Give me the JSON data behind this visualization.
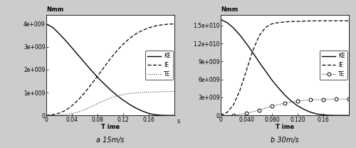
{
  "left": {
    "title": "Nmm",
    "xlabel": "T ime",
    "xlabel_s": "s",
    "xlim": [
      0,
      0.2
    ],
    "ylim": [
      0,
      4400000000.0
    ],
    "yticks": [
      0,
      1000000000.0,
      2000000000.0,
      3000000000.0,
      4000000000.0
    ],
    "ytick_labels": [
      "0",
      "1e+009",
      "2e+009",
      "3e+009",
      "4e+009"
    ],
    "xticks": [
      0,
      0.04,
      0.08,
      0.12,
      0.16
    ],
    "xtick_labels": [
      "0",
      "0.04",
      "0.08",
      "0.12",
      "0.16"
    ],
    "caption": "a 15m/s",
    "KE_x": [
      0.0,
      0.01,
      0.02,
      0.03,
      0.04,
      0.05,
      0.06,
      0.07,
      0.08,
      0.09,
      0.1,
      0.11,
      0.12,
      0.13,
      0.14,
      0.15,
      0.16,
      0.17,
      0.18,
      0.19,
      0.2
    ],
    "KE_y": [
      4000000000.0,
      3850000000.0,
      3580000000.0,
      3280000000.0,
      2960000000.0,
      2630000000.0,
      2300000000.0,
      1980000000.0,
      1670000000.0,
      1390000000.0,
      1120000000.0,
      880000000.0,
      670000000.0,
      480000000.0,
      320000000.0,
      190000000.0,
      90000000.0,
      30000000.0,
      8000000.0,
      1000000.0,
      200000.0
    ],
    "IE_x": [
      0.0,
      0.01,
      0.02,
      0.03,
      0.04,
      0.05,
      0.06,
      0.07,
      0.08,
      0.09,
      0.1,
      0.11,
      0.12,
      0.13,
      0.14,
      0.15,
      0.16,
      0.17,
      0.18,
      0.19,
      0.2
    ],
    "IE_y": [
      0.0,
      30000000.0,
      100000000.0,
      220000000.0,
      420000000.0,
      680000000.0,
      1000000000.0,
      1350000000.0,
      1720000000.0,
      2100000000.0,
      2480000000.0,
      2820000000.0,
      3120000000.0,
      3370000000.0,
      3570000000.0,
      3720000000.0,
      3830000000.0,
      3910000000.0,
      3960000000.0,
      3990000000.0,
      4000000000.0
    ],
    "TE_x": [
      0.0,
      0.01,
      0.02,
      0.03,
      0.04,
      0.05,
      0.06,
      0.07,
      0.08,
      0.09,
      0.1,
      0.11,
      0.12,
      0.13,
      0.14,
      0.15,
      0.16,
      0.17,
      0.18,
      0.19,
      0.2
    ],
    "TE_y": [
      0.0,
      5000000.0,
      15000000.0,
      40000000.0,
      80000000.0,
      150000000.0,
      250000000.0,
      380000000.0,
      520000000.0,
      650000000.0,
      760000000.0,
      850000000.0,
      910000000.0,
      960000000.0,
      990000000.0,
      1010000000.0,
      1020000000.0,
      1030000000.0,
      1040000000.0,
      1040000000.0,
      1050000000.0
    ]
  },
  "right": {
    "title": "Nmm",
    "xlabel": "T ime",
    "xlim": [
      0,
      0.2
    ],
    "ylim": [
      0,
      16800000000.0
    ],
    "yticks": [
      0,
      3000000000.0,
      6000000000.0,
      9000000000.0,
      12000000000.0,
      15000000000.0
    ],
    "ytick_labels": [
      "0",
      "3e+009",
      "6e+009",
      "9e+009",
      "1.2e+010",
      "1.5e+010"
    ],
    "xticks": [
      0,
      0.04,
      0.08,
      0.12,
      0.16
    ],
    "xtick_labels": [
      "0",
      "0.040",
      "0.080",
      "0.120",
      "0.16"
    ],
    "caption": "b 30m/s",
    "KE_x": [
      0.0,
      0.01,
      0.02,
      0.03,
      0.04,
      0.05,
      0.06,
      0.07,
      0.08,
      0.09,
      0.1,
      0.11,
      0.12,
      0.13,
      0.14,
      0.15,
      0.16,
      0.17,
      0.18,
      0.19,
      0.2
    ],
    "KE_y": [
      16000000000.0,
      15500000000.0,
      14600000000.0,
      13400000000.0,
      12000000000.0,
      10500000000.0,
      8900000000.0,
      7400000000.0,
      5900000000.0,
      4600000000.0,
      3400000000.0,
      2400000000.0,
      1600000000.0,
      1000000000.0,
      550000000.0,
      250000000.0,
      90000000.0,
      20000000.0,
      5000000.0,
      1000000.0,
      200000.0
    ],
    "IE_x": [
      0.0,
      0.01,
      0.02,
      0.03,
      0.04,
      0.05,
      0.06,
      0.07,
      0.08,
      0.09,
      0.1,
      0.11,
      0.12,
      0.13,
      0.14,
      0.15,
      0.16,
      0.17,
      0.18,
      0.19,
      0.2
    ],
    "IE_y": [
      0.0,
      500000000.0,
      1800000000.0,
      4200000000.0,
      7500000000.0,
      10800000000.0,
      13300000000.0,
      14700000000.0,
      15300000000.0,
      15500000000.0,
      15600000000.0,
      15700000000.0,
      15700000000.0,
      15750000000.0,
      15780000000.0,
      15790000000.0,
      15800000000.0,
      15800000000.0,
      15800000000.0,
      15800000000.0,
      15800000000.0
    ],
    "TE_x": [
      0.0,
      0.02,
      0.04,
      0.06,
      0.08,
      0.1,
      0.12,
      0.14,
      0.16,
      0.18,
      0.2
    ],
    "TE_y": [
      0.0,
      50000000.0,
      350000000.0,
      900000000.0,
      1550000000.0,
      2050000000.0,
      2400000000.0,
      2600000000.0,
      2680000000.0,
      2720000000.0,
      2730000000.0
    ]
  },
  "bg_color": "#cccccc",
  "plot_bg": "#ffffff"
}
